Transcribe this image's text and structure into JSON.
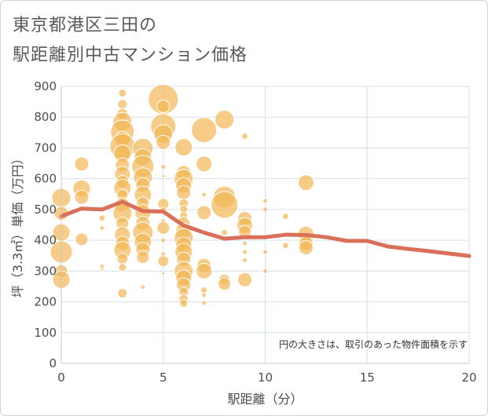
{
  "title_line1": "東京都港区三田の",
  "title_line2": "駅距離別中古マンション価格",
  "chart_data": {
    "type": "scatter",
    "title": "東京都港区三田の駅距離別中古マンション価格",
    "xlabel": "駅距離（分）",
    "ylabel": "坪（3.3㎡）単価（万円）",
    "xlim": [
      0,
      20
    ],
    "ylim": [
      0,
      900
    ],
    "xticks": [
      0,
      5,
      10,
      15,
      20
    ],
    "yticks": [
      0,
      100,
      200,
      300,
      400,
      500,
      600,
      700,
      800,
      900
    ],
    "grid": true,
    "note": "円の大きさは、取引のあった物件面積を示す",
    "colors": {
      "bubble": "#f2b655",
      "line": "#d9705a",
      "grid": "#d7e1ec",
      "axis": "#c8c8c8"
    },
    "trend_line": {
      "x": [
        0,
        1,
        2,
        3,
        4,
        5,
        6,
        7,
        8,
        9,
        10,
        11,
        12,
        13,
        14,
        15,
        16,
        17,
        18,
        19,
        20
      ],
      "y": [
        478,
        503,
        500,
        525,
        495,
        493,
        448,
        425,
        405,
        410,
        410,
        418,
        417,
        410,
        398,
        398,
        380,
        372,
        365,
        357,
        349
      ]
    },
    "bubbles": [
      {
        "x": 0,
        "y": 538,
        "r": 12
      },
      {
        "x": 0,
        "y": 488,
        "r": 9
      },
      {
        "x": 0,
        "y": 425,
        "r": 11
      },
      {
        "x": 0,
        "y": 362,
        "r": 14
      },
      {
        "x": 0,
        "y": 300,
        "r": 8
      },
      {
        "x": 0,
        "y": 272,
        "r": 11
      },
      {
        "x": 1,
        "y": 648,
        "r": 9
      },
      {
        "x": 1,
        "y": 568,
        "r": 11
      },
      {
        "x": 1,
        "y": 540,
        "r": 9
      },
      {
        "x": 1,
        "y": 403,
        "r": 8
      },
      {
        "x": 2,
        "y": 472,
        "r": 4
      },
      {
        "x": 2,
        "y": 440,
        "r": 3
      },
      {
        "x": 2,
        "y": 315,
        "r": 3
      },
      {
        "x": 2,
        "y": 305,
        "r": 2
      },
      {
        "x": 3,
        "y": 878,
        "r": 5
      },
      {
        "x": 3,
        "y": 842,
        "r": 6
      },
      {
        "x": 3,
        "y": 810,
        "r": 7
      },
      {
        "x": 3,
        "y": 785,
        "r": 12
      },
      {
        "x": 3,
        "y": 752,
        "r": 15
      },
      {
        "x": 3,
        "y": 728,
        "r": 10
      },
      {
        "x": 3,
        "y": 705,
        "r": 16
      },
      {
        "x": 3,
        "y": 682,
        "r": 11
      },
      {
        "x": 3,
        "y": 645,
        "r": 9
      },
      {
        "x": 3,
        "y": 615,
        "r": 10
      },
      {
        "x": 3,
        "y": 590,
        "r": 8
      },
      {
        "x": 3,
        "y": 570,
        "r": 11
      },
      {
        "x": 3,
        "y": 548,
        "r": 7
      },
      {
        "x": 3,
        "y": 515,
        "r": 9
      },
      {
        "x": 3,
        "y": 488,
        "r": 12
      },
      {
        "x": 3,
        "y": 455,
        "r": 8
      },
      {
        "x": 3,
        "y": 418,
        "r": 10
      },
      {
        "x": 3,
        "y": 390,
        "r": 9
      },
      {
        "x": 3,
        "y": 368,
        "r": 11
      },
      {
        "x": 3,
        "y": 340,
        "r": 7
      },
      {
        "x": 3,
        "y": 312,
        "r": 5
      },
      {
        "x": 3,
        "y": 228,
        "r": 6
      },
      {
        "x": 4,
        "y": 698,
        "r": 13
      },
      {
        "x": 4,
        "y": 670,
        "r": 11
      },
      {
        "x": 4,
        "y": 640,
        "r": 14
      },
      {
        "x": 4,
        "y": 605,
        "r": 12
      },
      {
        "x": 4,
        "y": 580,
        "r": 9
      },
      {
        "x": 4,
        "y": 548,
        "r": 11
      },
      {
        "x": 4,
        "y": 520,
        "r": 8
      },
      {
        "x": 4,
        "y": 490,
        "r": 10
      },
      {
        "x": 4,
        "y": 455,
        "r": 9
      },
      {
        "x": 4,
        "y": 425,
        "r": 13
      },
      {
        "x": 4,
        "y": 395,
        "r": 11
      },
      {
        "x": 4,
        "y": 370,
        "r": 9
      },
      {
        "x": 4,
        "y": 345,
        "r": 8
      },
      {
        "x": 4,
        "y": 248,
        "r": 3
      },
      {
        "x": 5,
        "y": 858,
        "r": 19
      },
      {
        "x": 5,
        "y": 835,
        "r": 8
      },
      {
        "x": 5,
        "y": 770,
        "r": 16
      },
      {
        "x": 5,
        "y": 745,
        "r": 12
      },
      {
        "x": 5,
        "y": 718,
        "r": 9
      },
      {
        "x": 5,
        "y": 638,
        "r": 3
      },
      {
        "x": 5,
        "y": 608,
        "r": 2
      },
      {
        "x": 5,
        "y": 518,
        "r": 7
      },
      {
        "x": 5,
        "y": 498,
        "r": 4
      },
      {
        "x": 5,
        "y": 462,
        "r": 3
      },
      {
        "x": 5,
        "y": 440,
        "r": 8
      },
      {
        "x": 5,
        "y": 400,
        "r": 3
      },
      {
        "x": 5,
        "y": 355,
        "r": 3
      },
      {
        "x": 5,
        "y": 332,
        "r": 7
      },
      {
        "x": 5,
        "y": 292,
        "r": 2
      },
      {
        "x": 6,
        "y": 702,
        "r": 11
      },
      {
        "x": 6,
        "y": 620,
        "r": 9
      },
      {
        "x": 6,
        "y": 600,
        "r": 12
      },
      {
        "x": 6,
        "y": 578,
        "r": 10
      },
      {
        "x": 6,
        "y": 555,
        "r": 9
      },
      {
        "x": 6,
        "y": 520,
        "r": 6
      },
      {
        "x": 6,
        "y": 500,
        "r": 5
      },
      {
        "x": 6,
        "y": 480,
        "r": 5
      },
      {
        "x": 6,
        "y": 455,
        "r": 8
      },
      {
        "x": 6,
        "y": 430,
        "r": 10
      },
      {
        "x": 6,
        "y": 408,
        "r": 12
      },
      {
        "x": 6,
        "y": 385,
        "r": 10
      },
      {
        "x": 6,
        "y": 362,
        "r": 11
      },
      {
        "x": 6,
        "y": 338,
        "r": 9
      },
      {
        "x": 6,
        "y": 300,
        "r": 12
      },
      {
        "x": 6,
        "y": 278,
        "r": 10
      },
      {
        "x": 6,
        "y": 255,
        "r": 9
      },
      {
        "x": 6,
        "y": 232,
        "r": 6
      },
      {
        "x": 6,
        "y": 208,
        "r": 6
      },
      {
        "x": 6,
        "y": 195,
        "r": 5
      },
      {
        "x": 7,
        "y": 758,
        "r": 16
      },
      {
        "x": 7,
        "y": 648,
        "r": 10
      },
      {
        "x": 7,
        "y": 548,
        "r": 3
      },
      {
        "x": 7,
        "y": 490,
        "r": 9
      },
      {
        "x": 7,
        "y": 318,
        "r": 9
      },
      {
        "x": 7,
        "y": 300,
        "r": 10
      },
      {
        "x": 7,
        "y": 238,
        "r": 4
      },
      {
        "x": 7,
        "y": 222,
        "r": 3
      },
      {
        "x": 7,
        "y": 196,
        "r": 3
      },
      {
        "x": 8,
        "y": 792,
        "r": 12
      },
      {
        "x": 8,
        "y": 540,
        "r": 14
      },
      {
        "x": 8,
        "y": 515,
        "r": 17
      },
      {
        "x": 8,
        "y": 425,
        "r": 4
      },
      {
        "x": 8,
        "y": 272,
        "r": 7
      },
      {
        "x": 8,
        "y": 258,
        "r": 8
      },
      {
        "x": 9,
        "y": 738,
        "r": 4
      },
      {
        "x": 9,
        "y": 470,
        "r": 9
      },
      {
        "x": 9,
        "y": 448,
        "r": 10
      },
      {
        "x": 9,
        "y": 428,
        "r": 8
      },
      {
        "x": 9,
        "y": 390,
        "r": 3
      },
      {
        "x": 9,
        "y": 362,
        "r": 3
      },
      {
        "x": 9,
        "y": 335,
        "r": 3
      },
      {
        "x": 9,
        "y": 272,
        "r": 9
      },
      {
        "x": 10,
        "y": 528,
        "r": 3
      },
      {
        "x": 10,
        "y": 500,
        "r": 3
      },
      {
        "x": 10,
        "y": 410,
        "r": 3
      },
      {
        "x": 10,
        "y": 362,
        "r": 3
      },
      {
        "x": 10,
        "y": 300,
        "r": 3
      },
      {
        "x": 11,
        "y": 478,
        "r": 4
      },
      {
        "x": 11,
        "y": 383,
        "r": 4
      },
      {
        "x": 12,
        "y": 587,
        "r": 10
      },
      {
        "x": 12,
        "y": 420,
        "r": 10
      },
      {
        "x": 12,
        "y": 390,
        "r": 9
      },
      {
        "x": 12,
        "y": 376,
        "r": 9
      }
    ]
  }
}
